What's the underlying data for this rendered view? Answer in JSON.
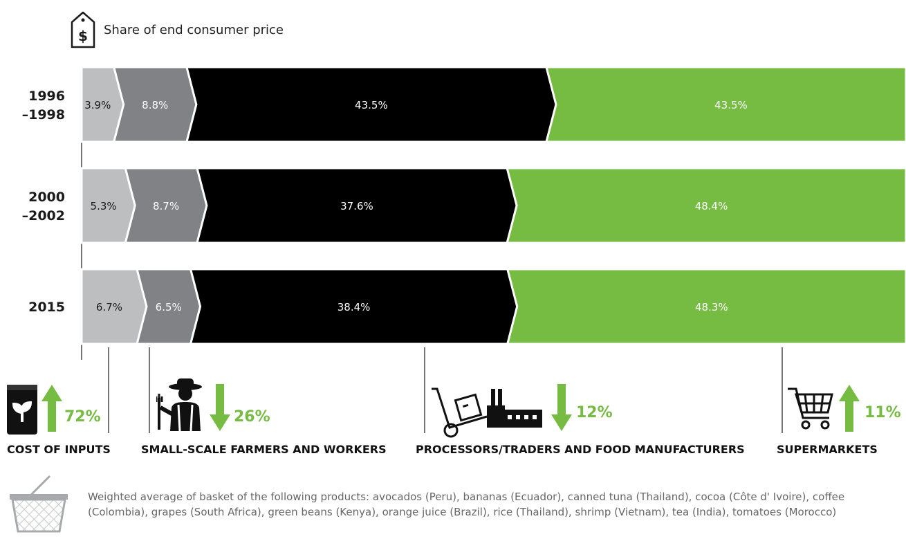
{
  "title": "Share of end consumer price",
  "colors": {
    "inputs": "#bcbec0",
    "farmers": "#808285",
    "processors": "#000000",
    "supermarkets": "#76bc43",
    "up": "#76bc43",
    "down": "#76bc43"
  },
  "chart_data": {
    "type": "bar",
    "stacked": true,
    "orientation": "horizontal",
    "title": "Share of end consumer price",
    "categories": [
      "1996\n–1998",
      "2000\n–2002",
      "2015"
    ],
    "series": [
      {
        "name": "COST OF INPUTS",
        "values": [
          3.9,
          5.3,
          6.7
        ],
        "labels": [
          "3.9%",
          "5.3%",
          "6.7%"
        ]
      },
      {
        "name": "SMALL-SCALE FARMERS AND WORKERS",
        "values": [
          8.8,
          8.7,
          6.5
        ],
        "labels": [
          "8.8%",
          "8.7%",
          "6.5%"
        ]
      },
      {
        "name": "PROCESSORS/TRADERS AND FOOD MANUFACTURERS",
        "values": [
          43.5,
          37.6,
          38.4
        ],
        "labels": [
          "43.5%",
          "37.6%",
          "38.4%"
        ]
      },
      {
        "name": "SUPERMARKETS",
        "values": [
          43.5,
          48.4,
          48.3
        ],
        "labels": [
          "43.5%",
          "48.4%",
          "48.3%"
        ]
      }
    ],
    "xlim": [
      0,
      100
    ]
  },
  "actors": [
    {
      "name": "COST OF INPUTS",
      "change": "72%",
      "direction": "up",
      "icon": "seed-bag-icon"
    },
    {
      "name": "SMALL-SCALE FARMERS AND WORKERS",
      "change": "26%",
      "direction": "down",
      "icon": "farmer-icon"
    },
    {
      "name": "PROCESSORS/TRADERS AND FOOD MANUFACTURERS",
      "change": "12%",
      "direction": "down",
      "icon": "factory-icon"
    },
    {
      "name": "SUPERMARKETS",
      "change": "11%",
      "direction": "up",
      "icon": "shopping-cart-icon"
    }
  ],
  "note": "Weighted average of basket of the following products: avocados (Peru), bananas (Ecuador), canned tuna (Thailand), cocoa (Côte d' Ivoire), coffee (Colombia), grapes (South Africa), green beans (Kenya), orange juice (Brazil), rice (Thailand), shrimp (Vietnam), tea (India), tomatoes (Morocco)"
}
